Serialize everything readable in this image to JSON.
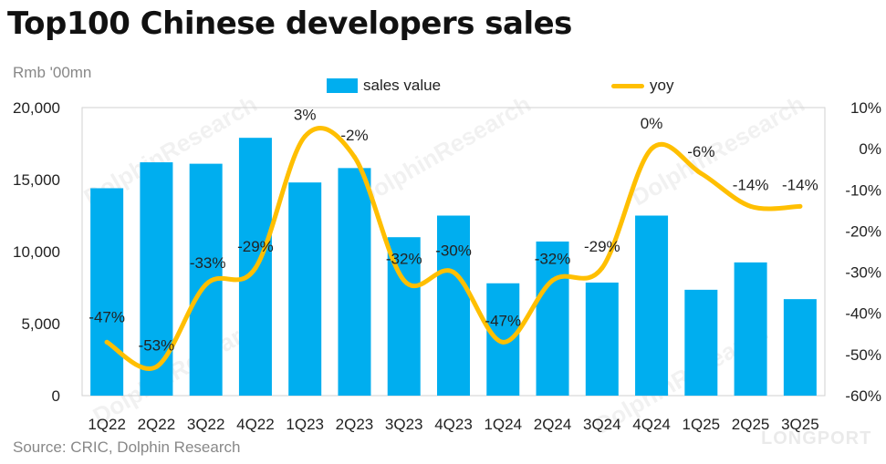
{
  "title": "Top100 Chinese developers sales",
  "unit_label": "Rmb '00mn",
  "source": "Source: CRIC, Dolphin Research",
  "watermark": "DolphinResearch",
  "brand": "LONGPORT",
  "colors": {
    "bar": "#00AEEF",
    "line": "#FFBF00"
  },
  "legend": {
    "bar_label": "sales value",
    "line_label": "yoy"
  },
  "chart_data": {
    "type": "bar",
    "title": "Top100 Chinese developers sales",
    "categories": [
      "1Q22",
      "2Q22",
      "3Q22",
      "4Q22",
      "1Q23",
      "2Q23",
      "3Q23",
      "4Q23",
      "1Q24",
      "2Q24",
      "3Q24",
      "4Q24",
      "1Q25",
      "2Q25",
      "3Q25"
    ],
    "series": [
      {
        "name": "sales value",
        "type": "bar",
        "axis": "left",
        "values": [
          14400,
          16200,
          16100,
          17900,
          14800,
          15800,
          11000,
          12500,
          7800,
          10700,
          7850,
          12500,
          7350,
          9250,
          6700
        ]
      },
      {
        "name": "yoy",
        "type": "line",
        "axis": "right",
        "values": [
          -47,
          -53,
          -33,
          -29,
          3,
          -2,
          -32,
          -30,
          -47,
          -32,
          -29,
          0,
          -6,
          -14,
          -14
        ],
        "labels": [
          "-47%",
          "-53%",
          "-33%",
          "-29%",
          "3%",
          "-2%",
          "-32%",
          "-30%",
          "-47%",
          "-32%",
          "-29%",
          "0%",
          "-6%",
          "-14%",
          "-14%"
        ]
      }
    ],
    "y_left": {
      "min": 0,
      "max": 20000,
      "ticks": [
        0,
        5000,
        10000,
        15000,
        20000
      ],
      "tick_labels": [
        "0",
        "5,000",
        "10,000",
        "15,000",
        "20,000"
      ]
    },
    "y_right": {
      "min": -60,
      "max": 10,
      "ticks": [
        -60,
        -50,
        -40,
        -30,
        -20,
        -10,
        0,
        10
      ],
      "tick_labels": [
        "-60%",
        "-50%",
        "-40%",
        "-30%",
        "-20%",
        "-10%",
        "0%",
        "10%"
      ]
    },
    "ylabel": "Rmb '00mn",
    "legend_position": "top-center"
  }
}
